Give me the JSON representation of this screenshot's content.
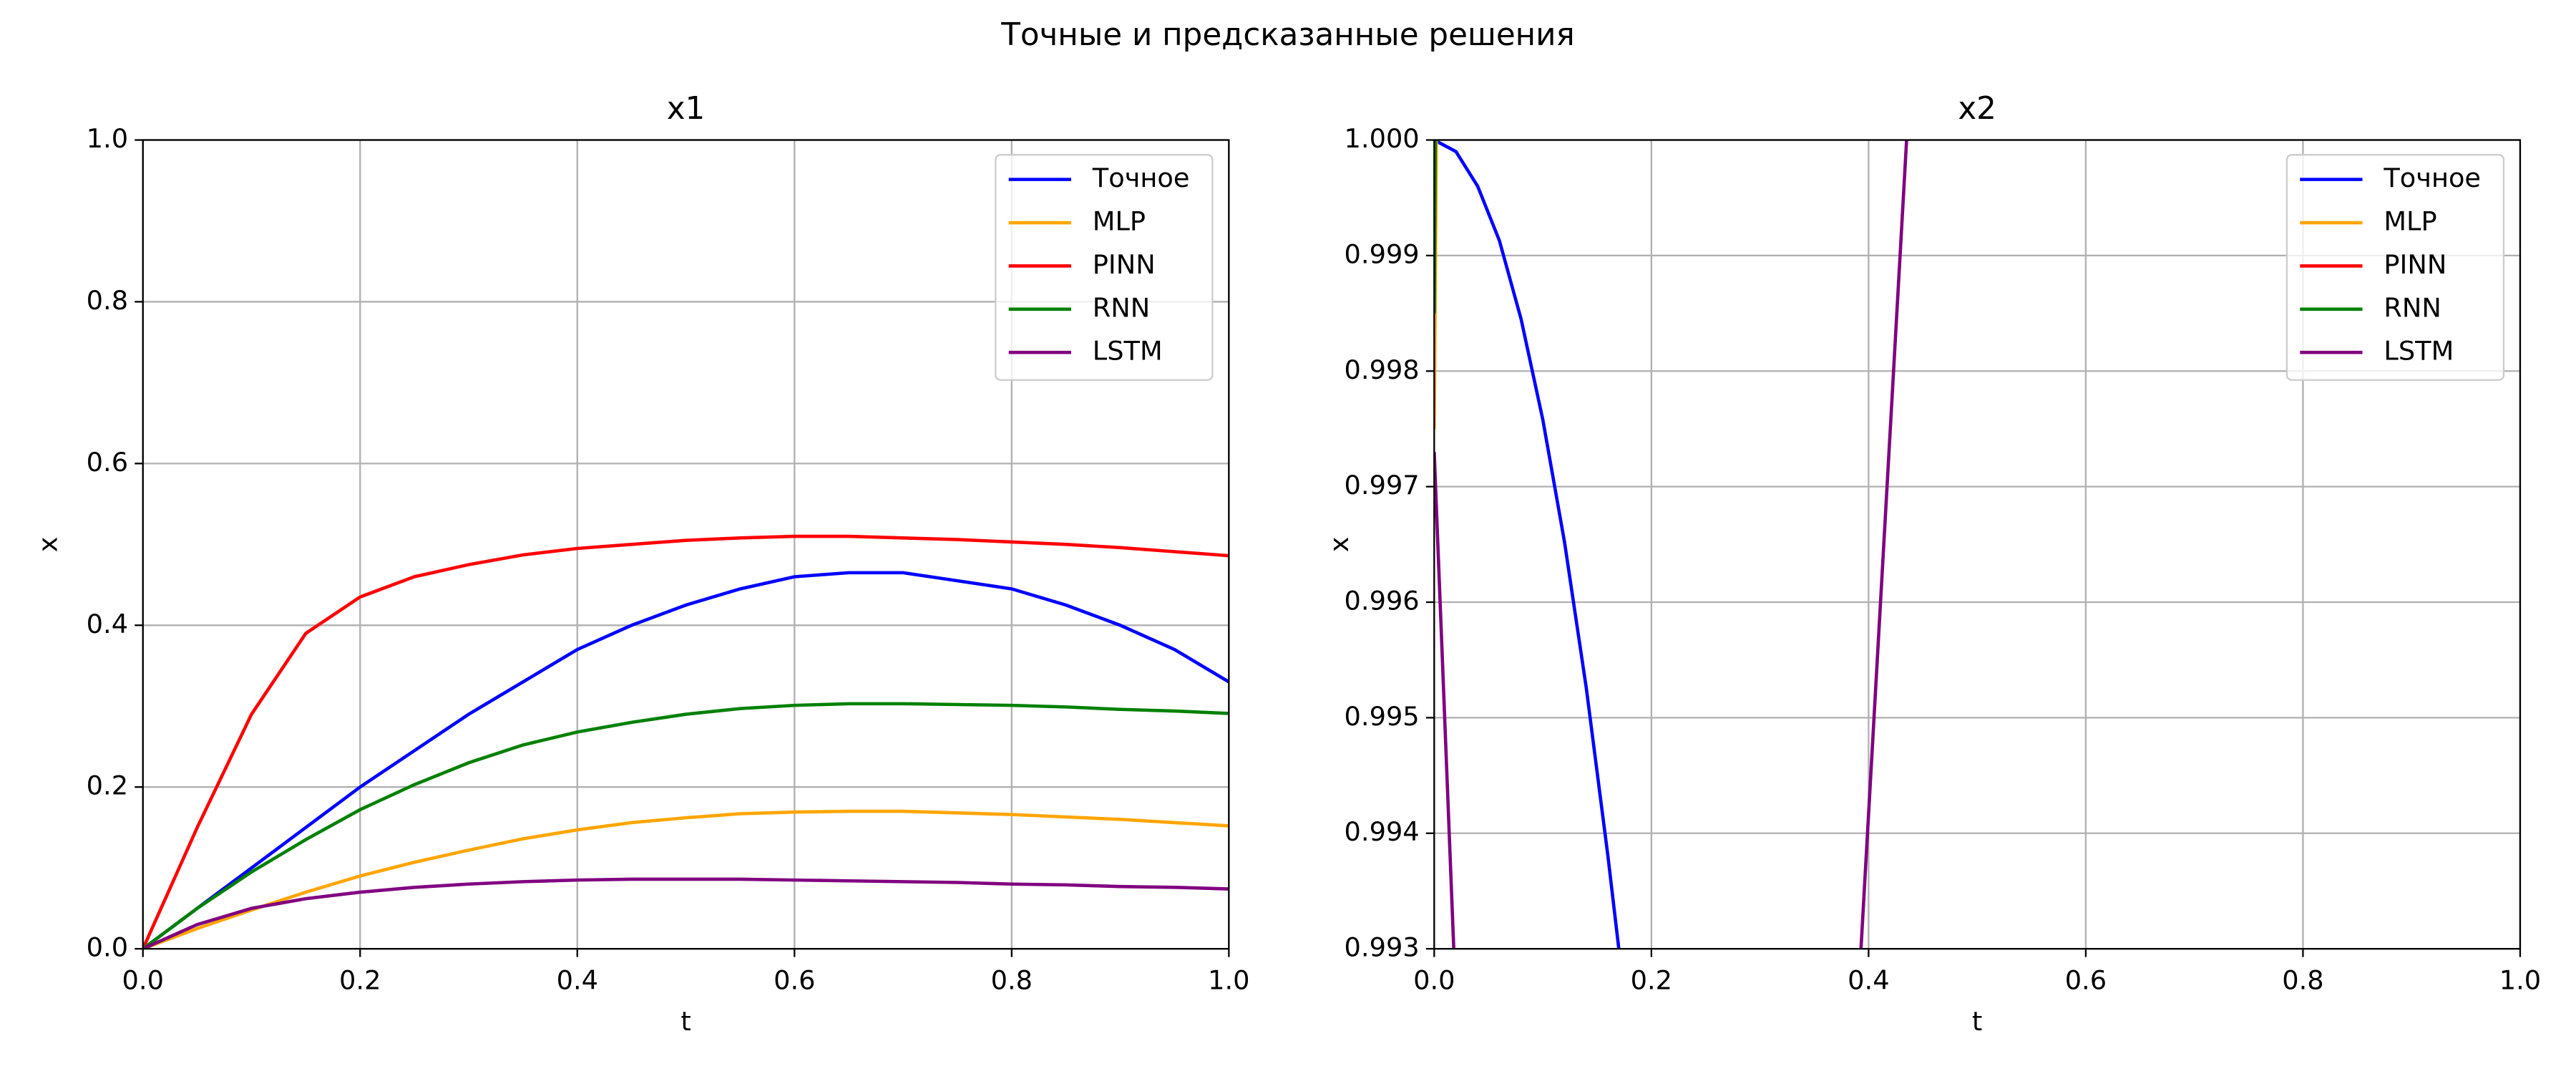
{
  "title": "Точные и предсказанные решения",
  "chart_data": [
    {
      "type": "line",
      "title": "x1",
      "x_label": "t",
      "y_label": "x",
      "xlim": [
        0,
        1
      ],
      "ylim": [
        0,
        1
      ],
      "grid": true,
      "legend": "upper right",
      "xticks": [
        {
          "value": 0,
          "label": "0.0"
        },
        0.2,
        0.4,
        0.6,
        0.8,
        {
          "value": 1,
          "label": "1.0"
        }
      ],
      "yticks": [
        {
          "value": 0,
          "label": "0.0"
        },
        0.2,
        0.4,
        0.6,
        0.8,
        {
          "value": 1,
          "label": "1.0"
        }
      ],
      "x": [
        0,
        0.05,
        0.1,
        0.15,
        0.2,
        0.25,
        0.3,
        0.35,
        0.4,
        0.45,
        0.5,
        0.55,
        0.6,
        0.65,
        0.7,
        0.75,
        0.8,
        0.85,
        0.9,
        0.95,
        1
      ],
      "series": [
        {
          "name": "Точное",
          "color": "#0000ff",
          "values": [
            0,
            0.05,
            0.1,
            0.15,
            0.2,
            0.245,
            0.29,
            0.33,
            0.37,
            0.4,
            0.425,
            0.445,
            0.46,
            0.465,
            0.465,
            0.455,
            0.445,
            0.425,
            0.4,
            0.37,
            0.33
          ]
        },
        {
          "name": "MLP",
          "color": "#ffa500",
          "values": [
            0,
            0.025,
            0.048,
            0.07,
            0.09,
            0.107,
            0.122,
            0.136,
            0.147,
            0.156,
            0.162,
            0.167,
            0.169,
            0.17,
            0.17,
            0.168,
            0.166,
            0.163,
            0.16,
            0.156,
            0.152
          ]
        },
        {
          "name": "PINN",
          "color": "#ff0000",
          "values": [
            0,
            0.15,
            0.29,
            0.39,
            0.435,
            0.46,
            0.475,
            0.487,
            0.495,
            0.5,
            0.505,
            0.508,
            0.51,
            0.51,
            0.508,
            0.506,
            0.503,
            0.5,
            0.496,
            0.491,
            0.486
          ]
        },
        {
          "name": "RNN",
          "color": "#008000",
          "values": [
            0,
            0.05,
            0.095,
            0.135,
            0.172,
            0.203,
            0.23,
            0.252,
            0.268,
            0.28,
            0.29,
            0.297,
            0.301,
            0.303,
            0.303,
            0.302,
            0.301,
            0.299,
            0.296,
            0.294,
            0.291
          ]
        },
        {
          "name": "LSTM",
          "color": "#800080",
          "values": [
            0,
            0.03,
            0.05,
            0.062,
            0.07,
            0.076,
            0.08,
            0.083,
            0.085,
            0.086,
            0.086,
            0.086,
            0.085,
            0.084,
            0.083,
            0.082,
            0.08,
            0.079,
            0.077,
            0.076,
            0.074
          ]
        }
      ]
    },
    {
      "type": "line",
      "title": "x2",
      "x_label": "t",
      "y_label": "x",
      "xlim": [
        0,
        1
      ],
      "ylim": [
        0.993,
        1
      ],
      "grid": true,
      "legend": "upper right",
      "xticks": [
        {
          "value": 0,
          "label": "0.0"
        },
        0.2,
        0.4,
        0.6,
        0.8,
        {
          "value": 1,
          "label": "1.0"
        }
      ],
      "yticks": [
        0.993,
        0.994,
        0.995,
        0.996,
        0.997,
        0.998,
        0.999,
        {
          "value": 1,
          "label": "1.000"
        }
      ],
      "series": [
        {
          "name": "Точное",
          "color": "#0000ff",
          "x": [
            0,
            0.02,
            0.04,
            0.06,
            0.08,
            0.1,
            0.12,
            0.14,
            0.16,
            0.17
          ],
          "values": [
            1,
            0.9999,
            0.9996,
            0.99913,
            0.99845,
            0.99758,
            0.99652,
            0.99526,
            0.9938,
            0.993
          ]
        },
        {
          "name": "MLP",
          "color": "#ffa500",
          "x": [
            0,
            0.002
          ],
          "values": [
            0.9975,
            1
          ]
        },
        {
          "name": "PINN",
          "color": "#ff0000",
          "x": [],
          "values": []
        },
        {
          "name": "RNN",
          "color": "#008000",
          "x": [
            0,
            0.001
          ],
          "values": [
            0.9985,
            1
          ]
        },
        {
          "name": "LSTM",
          "color": "#800080",
          "x": [
            0,
            0.018,
            0.2,
            0.393,
            0.435
          ],
          "values": [
            0.9973,
            0.993,
            null,
            0.993,
            1
          ]
        }
      ]
    }
  ]
}
